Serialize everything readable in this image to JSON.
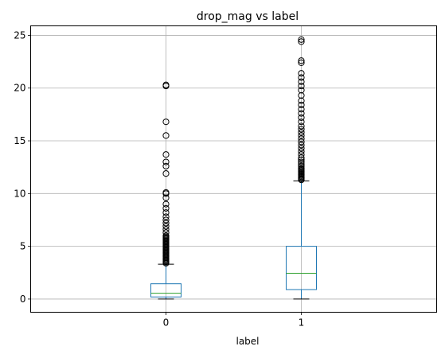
{
  "chart_data": {
    "type": "box",
    "title": "drop_mag vs label",
    "xlabel": "label",
    "ylabel": "",
    "categories": [
      "0",
      "1"
    ],
    "ylim": [
      -1.25,
      25.9
    ],
    "yticks": [
      0,
      5,
      10,
      15,
      20,
      25
    ],
    "grid": true,
    "colors": {
      "box": "#1f77b4",
      "median": "#2ca02c",
      "whisker": "#1f77b4",
      "cap": "#000000",
      "flier": "#000000",
      "grid": "#b0b0b0"
    },
    "boxes": [
      {
        "category": "0",
        "whisker_low": 0.0,
        "q1": 0.2,
        "median": 0.55,
        "q3": 1.45,
        "whisker_high": 3.3,
        "outliers": [
          3.4,
          3.5,
          3.6,
          3.7,
          3.8,
          3.9,
          4.0,
          4.1,
          4.2,
          4.3,
          4.4,
          4.5,
          4.6,
          4.7,
          4.8,
          4.9,
          5.0,
          5.1,
          5.2,
          5.3,
          5.4,
          5.5,
          5.6,
          5.7,
          5.8,
          5.9,
          6.0,
          6.3,
          6.6,
          6.9,
          7.2,
          7.5,
          7.8,
          8.2,
          8.6,
          9.0,
          9.6,
          10.0,
          10.1,
          11.9,
          12.6,
          13.0,
          13.7,
          15.5,
          16.8,
          20.2,
          20.3
        ]
      },
      {
        "category": "1",
        "whisker_low": 0.0,
        "q1": 0.9,
        "median": 2.45,
        "q3": 5.0,
        "whisker_high": 11.2,
        "outliers": [
          11.3,
          11.4,
          11.5,
          11.6,
          11.7,
          11.8,
          11.9,
          12.0,
          12.1,
          12.2,
          12.3,
          12.4,
          12.6,
          12.8,
          13.0,
          13.2,
          13.4,
          13.7,
          14.0,
          14.3,
          14.6,
          14.9,
          15.2,
          15.5,
          15.8,
          16.1,
          16.4,
          16.8,
          17.2,
          17.6,
          18.0,
          18.4,
          18.8,
          19.3,
          19.8,
          20.2,
          20.6,
          21.0,
          21.4,
          22.4,
          22.6,
          24.4,
          24.6
        ]
      }
    ]
  }
}
